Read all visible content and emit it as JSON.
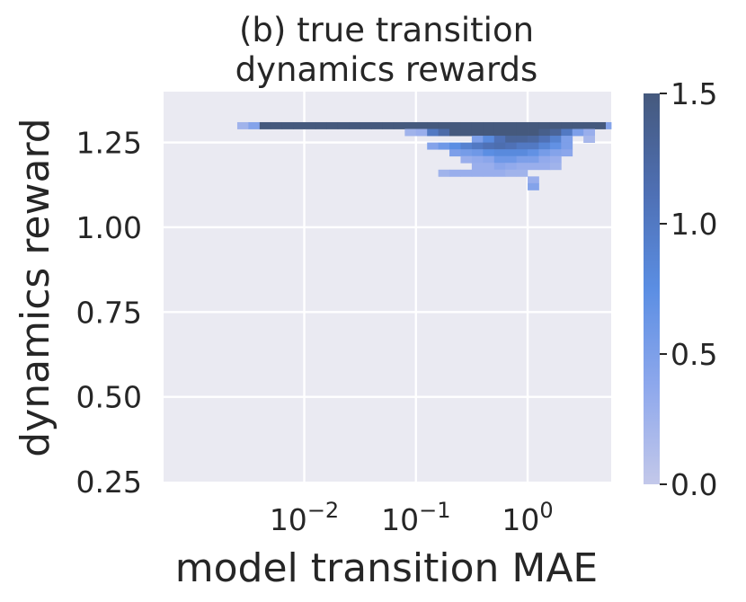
{
  "chart_data": {
    "type": "heatmap",
    "title_lines": [
      "(b) true transition",
      "dynamics rewards"
    ],
    "xlabel": "model transition MAE",
    "ylabel": "dynamics reward",
    "x_scale": "log",
    "x_range": [
      0.00055,
      5.6
    ],
    "y_range": [
      0.25,
      1.4
    ],
    "y_ticks": [
      0.25,
      0.5,
      0.75,
      1.0,
      1.25
    ],
    "y_tick_labels": [
      "0.25",
      "0.50",
      "0.75",
      "1.00",
      "1.25"
    ],
    "x_ticks": [
      {
        "value": 0.01,
        "base": "10",
        "exp": "−2"
      },
      {
        "value": 0.1,
        "base": "10",
        "exp": "−1"
      },
      {
        "value": 1,
        "base": "10",
        "exp": "0"
      }
    ],
    "colorbar": {
      "range": [
        0.0,
        1.5
      ],
      "ticks": [
        0.0,
        0.5,
        1.0,
        1.5
      ],
      "tick_labels": [
        "0.0",
        "0.5",
        "1.0",
        "1.5"
      ],
      "colors": [
        "#c3c8ea",
        "#8ea8ec",
        "#5b8ee3",
        "#4e6fb3",
        "#45597d"
      ]
    },
    "grid": true,
    "background": "#eaeaf2",
    "bin_width_decades": 0.1,
    "bin_height": 0.02,
    "rows": [
      {
        "y": 1.3,
        "cells": [
          [
            -2.55,
            0.25
          ],
          [
            -2.45,
            0.45
          ],
          [
            -2.35,
            1.5
          ],
          [
            -2.25,
            1.5
          ],
          [
            -2.15,
            1.5
          ],
          [
            -2.05,
            1.5
          ],
          [
            -1.95,
            1.5
          ],
          [
            -1.85,
            1.5
          ],
          [
            -1.75,
            1.5
          ],
          [
            -1.65,
            1.5
          ],
          [
            -1.55,
            1.5
          ],
          [
            -1.45,
            1.5
          ],
          [
            -1.35,
            1.5
          ],
          [
            -1.25,
            1.5
          ],
          [
            -1.15,
            1.5
          ],
          [
            -1.05,
            1.5
          ],
          [
            -0.95,
            1.5
          ],
          [
            -0.85,
            1.5
          ],
          [
            -0.75,
            1.5
          ],
          [
            -0.65,
            1.5
          ],
          [
            -0.55,
            1.5
          ],
          [
            -0.45,
            1.5
          ],
          [
            -0.35,
            1.5
          ],
          [
            -0.25,
            1.5
          ],
          [
            -0.15,
            1.5
          ],
          [
            -0.05,
            1.5
          ],
          [
            0.05,
            1.5
          ],
          [
            0.15,
            1.5
          ],
          [
            0.25,
            1.5
          ],
          [
            0.35,
            1.5
          ],
          [
            0.45,
            1.5
          ],
          [
            0.55,
            1.5
          ],
          [
            0.65,
            1.5
          ],
          [
            0.75,
            0.45
          ],
          [
            0.85,
            0.35
          ]
        ]
      },
      {
        "y": 1.28,
        "cells": [
          [
            -1.05,
            0.25
          ],
          [
            -0.95,
            0.3
          ],
          [
            -0.85,
            1.0
          ],
          [
            -0.75,
            1.2
          ],
          [
            -0.65,
            1.5
          ],
          [
            -0.55,
            1.5
          ],
          [
            -0.45,
            1.5
          ],
          [
            -0.35,
            1.5
          ],
          [
            -0.25,
            1.5
          ],
          [
            -0.15,
            1.5
          ],
          [
            -0.05,
            1.5
          ],
          [
            0.05,
            1.5
          ],
          [
            0.15,
            1.4
          ],
          [
            0.25,
            1.3
          ],
          [
            0.35,
            1.0
          ],
          [
            0.45,
            0.5
          ],
          [
            0.55,
            0.3
          ]
        ]
      },
      {
        "y": 1.26,
        "cells": [
          [
            -0.45,
            0.5
          ],
          [
            -0.35,
            0.8
          ],
          [
            -0.25,
            1.1
          ],
          [
            -0.15,
            1.3
          ],
          [
            -0.05,
            1.3
          ],
          [
            0.05,
            1.25
          ],
          [
            0.15,
            1.1
          ],
          [
            0.25,
            0.9
          ],
          [
            0.35,
            0.5
          ],
          [
            0.55,
            0.2
          ]
        ]
      },
      {
        "y": 1.24,
        "cells": [
          [
            -0.85,
            0.45
          ],
          [
            -0.75,
            0.6
          ],
          [
            -0.65,
            0.75
          ],
          [
            -0.55,
            0.9
          ],
          [
            -0.45,
            1.0
          ],
          [
            -0.35,
            1.1
          ],
          [
            -0.25,
            1.15
          ],
          [
            -0.15,
            1.1
          ],
          [
            -0.05,
            1.0
          ],
          [
            0.05,
            1.0
          ],
          [
            0.15,
            0.85
          ],
          [
            0.25,
            0.7
          ],
          [
            0.35,
            0.5
          ]
        ]
      },
      {
        "y": 1.22,
        "cells": [
          [
            -0.65,
            0.5
          ],
          [
            -0.55,
            0.55
          ],
          [
            -0.45,
            0.6
          ],
          [
            -0.35,
            0.75
          ],
          [
            -0.25,
            0.8
          ],
          [
            -0.15,
            0.8
          ],
          [
            -0.05,
            0.8
          ],
          [
            0.05,
            0.7
          ],
          [
            0.15,
            0.55
          ],
          [
            0.25,
            0.45
          ],
          [
            0.35,
            0.4
          ]
        ]
      },
      {
        "y": 1.2,
        "cells": [
          [
            -0.55,
            0.3
          ],
          [
            -0.45,
            0.35
          ],
          [
            -0.35,
            0.4
          ],
          [
            -0.25,
            0.6
          ],
          [
            -0.15,
            0.6
          ],
          [
            -0.05,
            0.5
          ],
          [
            0.05,
            0.5
          ],
          [
            0.15,
            0.35
          ],
          [
            0.25,
            0.3
          ]
        ]
      },
      {
        "y": 1.18,
        "cells": [
          [
            -0.45,
            0.3
          ],
          [
            -0.35,
            0.3
          ],
          [
            -0.25,
            0.4
          ],
          [
            -0.15,
            0.35
          ],
          [
            -0.05,
            0.3
          ],
          [
            0.05,
            0.3
          ],
          [
            0.15,
            0.3
          ],
          [
            0.25,
            0.25
          ]
        ]
      },
      {
        "y": 1.16,
        "cells": [
          [
            -0.75,
            0.25
          ],
          [
            -0.65,
            0.3
          ],
          [
            -0.55,
            0.3
          ],
          [
            -0.45,
            0.3
          ],
          [
            -0.35,
            0.3
          ],
          [
            -0.25,
            0.3
          ],
          [
            -0.15,
            0.25
          ],
          [
            -0.05,
            0.25
          ]
        ]
      },
      {
        "y": 1.14,
        "cells": [
          [
            0.05,
            0.3
          ]
        ]
      },
      {
        "y": 1.12,
        "cells": [
          [
            0.05,
            0.45
          ]
        ]
      }
    ]
  }
}
